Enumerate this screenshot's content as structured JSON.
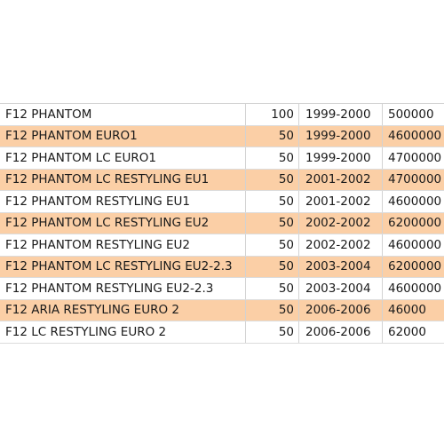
{
  "table": {
    "highlight_color": "#fbcfa6",
    "rows": [
      {
        "name": "F12 PHANTOM",
        "qty": "100",
        "years": "1999-2000",
        "price": "500000"
      },
      {
        "name": "F12 PHANTOM EURO1",
        "qty": "50",
        "years": "1999-2000",
        "price": "4600000"
      },
      {
        "name": "F12 PHANTOM LC EURO1",
        "qty": "50",
        "years": "1999-2000",
        "price": "4700000"
      },
      {
        "name": "F12 PHANTOM LC RESTYLING EU1",
        "qty": "50",
        "years": "2001-2002",
        "price": "4700000"
      },
      {
        "name": "F12 PHANTOM RESTYLING EU1",
        "qty": "50",
        "years": "2001-2002",
        "price": "4600000"
      },
      {
        "name": "F12 PHANTOM LC RESTYLING EU2",
        "qty": "50",
        "years": "2002-2002",
        "price": "6200000"
      },
      {
        "name": "F12 PHANTOM RESTYLING EU2",
        "qty": "50",
        "years": "2002-2002",
        "price": "4600000"
      },
      {
        "name": "F12 PHANTOM LC RESTYLING EU2-2.3",
        "qty": "50",
        "years": "2003-2004",
        "price": "6200000"
      },
      {
        "name": "F12 PHANTOM RESTYLING EU2-2.3",
        "qty": "50",
        "years": "2003-2004",
        "price": "4600000"
      },
      {
        "name": "F12 ARIA RESTYLING EURO 2",
        "qty": "50",
        "years": "2006-2006",
        "price": "46000"
      },
      {
        "name": "F12 LC RESTYLING EURO 2",
        "qty": "50",
        "years": "2006-2006",
        "price": "62000"
      }
    ]
  }
}
